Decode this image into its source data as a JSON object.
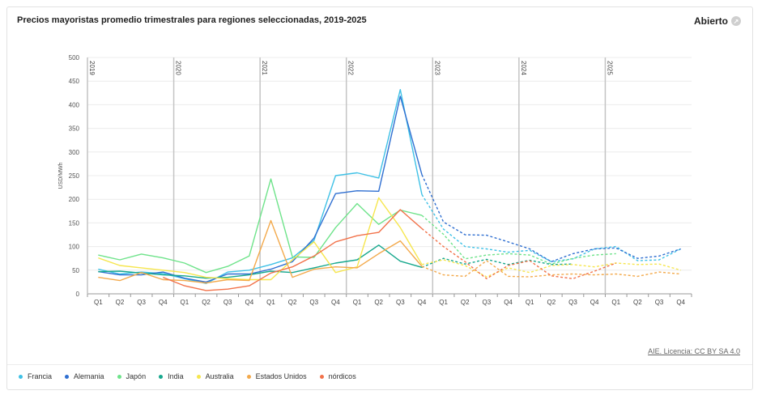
{
  "header": {
    "title": "Precios mayoristas promedio trimestrales para regiones seleccionadas, 2019-2025",
    "open_label": "Abierto"
  },
  "footer": {
    "license": "AIE. Licencia: CC BY SA 4.0"
  },
  "chart_data": {
    "type": "line",
    "ylabel": "USD/MWh",
    "ylim": [
      0,
      500
    ],
    "yticks": [
      0,
      50,
      100,
      150,
      200,
      250,
      300,
      350,
      400,
      450,
      500
    ],
    "years": [
      "2019",
      "2020",
      "2021",
      "2022",
      "2023",
      "2024",
      "2025"
    ],
    "categories": [
      "Q1",
      "Q2",
      "Q3",
      "Q4",
      "Q1",
      "Q2",
      "Q3",
      "Q4",
      "Q1",
      "Q2",
      "Q3",
      "Q4",
      "Q1",
      "Q2",
      "Q3",
      "Q4",
      "Q1",
      "Q2",
      "Q3",
      "Q4",
      "Q1",
      "Q2",
      "Q3",
      "Q4",
      "Q1",
      "Q2",
      "Q3",
      "Q4"
    ],
    "dashed_from_index": 15,
    "series": [
      {
        "name": "Francia",
        "color": "#3fc1e6",
        "values": [
          52,
          42,
          46,
          43,
          32,
          22,
          46,
          50,
          62,
          76,
          113,
          250,
          256,
          245,
          432,
          210,
          137,
          100,
          95,
          88,
          92,
          68,
          74,
          95,
          100,
          70,
          72,
          95
        ]
      },
      {
        "name": "Alemania",
        "color": "#2f6fd1",
        "values": [
          47,
          40,
          40,
          46,
          33,
          25,
          42,
          42,
          52,
          68,
          118,
          212,
          218,
          217,
          418,
          252,
          152,
          125,
          124,
          110,
          95,
          68,
          85,
          95,
          97,
          75,
          80,
          95
        ]
      },
      {
        "name": "Japón",
        "color": "#6ee38a",
        "values": [
          82,
          72,
          84,
          76,
          65,
          45,
          58,
          80,
          243,
          78,
          77,
          140,
          191,
          147,
          177,
          166,
          126,
          74,
          82,
          85,
          82,
          63,
          75,
          82,
          85,
          null,
          null,
          null
        ]
      },
      {
        "name": "India",
        "color": "#17a88d",
        "values": [
          47,
          48,
          44,
          40,
          38,
          33,
          35,
          40,
          48,
          45,
          55,
          65,
          72,
          103,
          69,
          56,
          75,
          63,
          73,
          62,
          71,
          62,
          63,
          null,
          null,
          null,
          null,
          null
        ]
      },
      {
        "name": "Australia",
        "color": "#f6e64e",
        "values": [
          76,
          60,
          55,
          50,
          45,
          35,
          32,
          30,
          30,
          72,
          110,
          45,
          57,
          203,
          140,
          62,
          72,
          60,
          36,
          55,
          45,
          60,
          62,
          57,
          65,
          62,
          63,
          50
        ]
      },
      {
        "name": "Estados Unidos",
        "color": "#f3a94b",
        "values": [
          35,
          28,
          45,
          30,
          28,
          23,
          30,
          28,
          155,
          35,
          52,
          57,
          55,
          85,
          112,
          58,
          40,
          37,
          70,
          37,
          36,
          40,
          42,
          40,
          42,
          37,
          46,
          42
        ]
      },
      {
        "name": "nórdicos",
        "color": "#f2724a",
        "values": [
          null,
          null,
          null,
          35,
          17,
          7,
          10,
          17,
          44,
          57,
          80,
          110,
          123,
          130,
          178,
          138,
          100,
          68,
          32,
          60,
          70,
          38,
          32,
          48,
          65,
          null,
          null,
          null
        ]
      }
    ]
  }
}
